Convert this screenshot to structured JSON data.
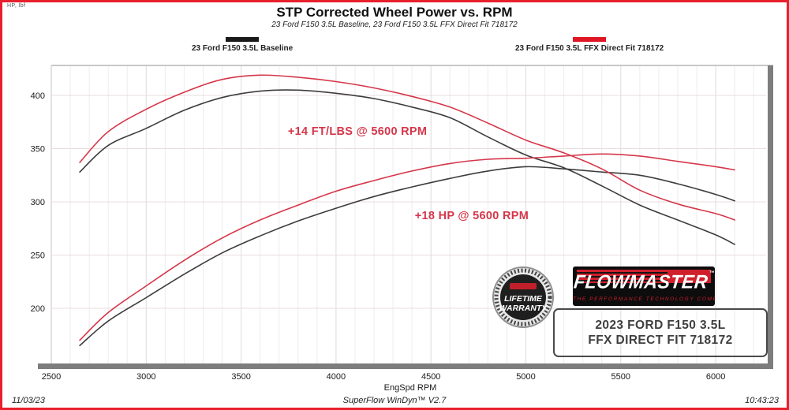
{
  "header": {
    "title": "STP Corrected Wheel Power vs. RPM",
    "subtitle": "23 Ford F150 3.5L Baseline, 23 Ford F150 3.5L FFX Direct Fit 718172",
    "units_label": "HP, lbf"
  },
  "legend": [
    {
      "label": "23 Ford F150 3.5L Baseline",
      "color": "#1a1a1a"
    },
    {
      "label": "23 Ford F150 3.5L FFX Direct Fit 718172",
      "color": "#e01625"
    }
  ],
  "chart_data": {
    "type": "line",
    "title": "STP Corrected Wheel Power vs. RPM",
    "xlabel": "EngSpd  RPM",
    "ylabel": "",
    "x_ticks": [
      2500,
      3000,
      3500,
      4000,
      4500,
      5000,
      5500,
      6000
    ],
    "y_ticks": [
      200,
      250,
      300,
      350,
      400
    ],
    "xlim": [
      2500,
      6290
    ],
    "ylim": [
      148,
      428
    ],
    "grid": {
      "vertical_minor_step": 100,
      "vertical_major_step": 500,
      "horizontal_step": 50
    },
    "x": [
      2650,
      2800,
      3000,
      3200,
      3400,
      3600,
      3800,
      4000,
      4200,
      4400,
      4600,
      4800,
      5000,
      5200,
      5400,
      5600,
      5800,
      6000,
      6100
    ],
    "series": [
      {
        "name": "23 Ford F150 3.5L Baseline Torque (ft-lb)",
        "color": "#3d3d3d",
        "values": [
          328,
          353,
          369,
          386,
          398,
          404,
          405,
          402,
          397,
          389,
          379,
          361,
          344,
          332,
          315,
          297,
          283,
          269,
          260
        ]
      },
      {
        "name": "23 Ford F150 3.5L Baseline Wheel Power (HP)",
        "color": "#3d3d3d",
        "values": [
          165,
          188,
          210,
          232,
          252,
          268,
          282,
          294,
          305,
          314,
          322,
          329,
          333,
          331,
          328,
          325,
          317,
          307,
          301
        ]
      },
      {
        "name": "23 Ford F150 3.5L FFX Direct Fit 718172 Torque (ft-lb)",
        "color": "#d5374a",
        "values": [
          337,
          366,
          387,
          403,
          415,
          419,
          417,
          413,
          407,
          399,
          389,
          374,
          358,
          346,
          331,
          311,
          298,
          289,
          283
        ]
      },
      {
        "name": "23 Ford F150 3.5L FFX Direct Fit 718172 Wheel Power (HP)",
        "color": "#d5374a",
        "values": [
          170,
          196,
          221,
          245,
          266,
          283,
          297,
          310,
          320,
          329,
          336,
          340,
          341,
          343,
          345,
          343,
          338,
          333,
          330
        ]
      }
    ],
    "annotations": [
      {
        "text": "+14 FT/LBS @ 5600 RPM",
        "at_rpm": 4113,
        "at_value": 366
      },
      {
        "text": "+18 HP @ 5600 RPM",
        "at_rpm": 4715,
        "at_value": 287
      }
    ]
  },
  "branding": {
    "badge_line1": "LIFETIME",
    "badge_line2": "WARRANTY",
    "logo_word": "FLOWMASTER",
    "logo_tm": "™",
    "logo_tagline": "THE PERFORMANCE TECHNOLOGY COMPANY",
    "vehicle_line1": "2023 FORD F150 3.5L",
    "vehicle_line2": "FFX DIRECT FIT 718172"
  },
  "status_bar": {
    "date": "11/03/23",
    "app": "SuperFlow WinDyn™ V2.7",
    "time": "10:43:23"
  }
}
